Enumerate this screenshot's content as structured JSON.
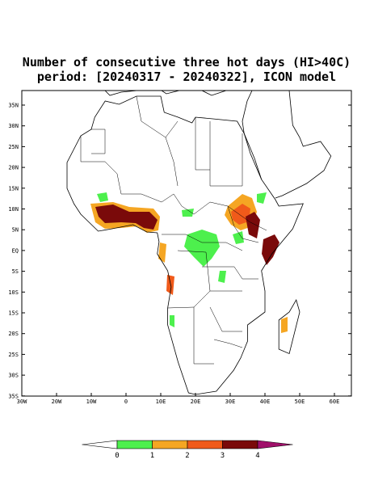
{
  "title": [
    "Number of consecutive three hot days (HI>40C)",
    "period: [20240317 - 20240322], ICON model"
  ],
  "map": {
    "lat_labels": [
      "35N",
      "30N",
      "25N",
      "20N",
      "15N",
      "10N",
      "5N",
      "EQ",
      "5S",
      "10S",
      "15S",
      "20S",
      "25S",
      "30S",
      "35S"
    ],
    "lon_labels": [
      "30W",
      "20W",
      "10W",
      "0",
      "10E",
      "20E",
      "30E",
      "40E",
      "50E",
      "60E"
    ]
  },
  "colorbar": {
    "levels": [
      0,
      1,
      2,
      3,
      4
    ],
    "colors": [
      "#ffffff",
      "#4df04d",
      "#f5a623",
      "#f05a1a",
      "#7a0a0a",
      "#a0106a"
    ]
  }
}
